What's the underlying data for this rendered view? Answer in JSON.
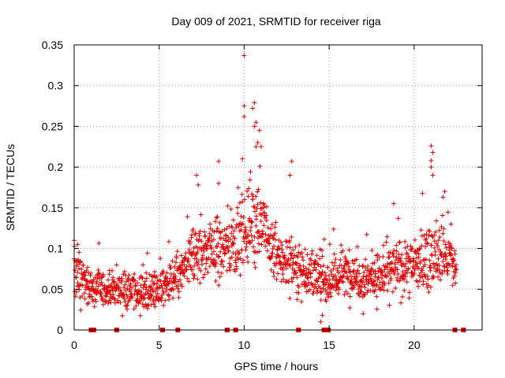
{
  "chart_data": {
    "type": "scatter",
    "title": "Day 009 of 2021, SRMTID for receiver riga",
    "xlabel": "GPS time / hours",
    "ylabel": "SRMTID / TECUs",
    "xlim": [
      0,
      24
    ],
    "ylim": [
      0,
      0.35
    ],
    "xticks": [
      0,
      5,
      10,
      15,
      20
    ],
    "xtick_labels": [
      "0",
      "5",
      "10",
      "15",
      "20"
    ],
    "yticks": [
      0,
      0.05,
      0.1,
      0.15,
      0.2,
      0.25,
      0.3,
      0.35
    ],
    "ytick_labels": [
      "0",
      "0.05",
      "0.1",
      "0.15",
      "0.2",
      "0.25",
      "0.3",
      "0.35"
    ],
    "grid": true,
    "marker": "+",
    "color": "#ff0000",
    "marker_color": "#dd0000",
    "series": [
      {
        "name": "SRMTID",
        "description": "dense scatter sampled at approximately 1-minute resolution",
        "envelope": [
          {
            "x": 0.0,
            "median": 0.07,
            "spread": 0.03
          },
          {
            "x": 0.5,
            "median": 0.06,
            "spread": 0.025
          },
          {
            "x": 1.0,
            "median": 0.05,
            "spread": 0.02
          },
          {
            "x": 2.0,
            "median": 0.05,
            "spread": 0.02
          },
          {
            "x": 3.0,
            "median": 0.05,
            "spread": 0.02
          },
          {
            "x": 4.0,
            "median": 0.045,
            "spread": 0.02
          },
          {
            "x": 5.0,
            "median": 0.05,
            "spread": 0.02
          },
          {
            "x": 6.0,
            "median": 0.06,
            "spread": 0.02
          },
          {
            "x": 7.0,
            "median": 0.09,
            "spread": 0.035
          },
          {
            "x": 8.0,
            "median": 0.1,
            "spread": 0.035
          },
          {
            "x": 9.0,
            "median": 0.1,
            "spread": 0.035
          },
          {
            "x": 10.0,
            "median": 0.12,
            "spread": 0.04
          },
          {
            "x": 10.5,
            "median": 0.14,
            "spread": 0.05
          },
          {
            "x": 11.0,
            "median": 0.13,
            "spread": 0.04
          },
          {
            "x": 12.0,
            "median": 0.085,
            "spread": 0.03
          },
          {
            "x": 13.0,
            "median": 0.08,
            "spread": 0.03
          },
          {
            "x": 14.0,
            "median": 0.065,
            "spread": 0.025
          },
          {
            "x": 15.0,
            "median": 0.06,
            "spread": 0.025
          },
          {
            "x": 16.0,
            "median": 0.07,
            "spread": 0.025
          },
          {
            "x": 17.0,
            "median": 0.065,
            "spread": 0.025
          },
          {
            "x": 18.0,
            "median": 0.065,
            "spread": 0.025
          },
          {
            "x": 19.0,
            "median": 0.075,
            "spread": 0.03
          },
          {
            "x": 20.0,
            "median": 0.08,
            "spread": 0.03
          },
          {
            "x": 21.0,
            "median": 0.09,
            "spread": 0.035
          },
          {
            "x": 22.0,
            "median": 0.09,
            "spread": 0.035
          },
          {
            "x": 22.5,
            "median": 0.07,
            "spread": 0.02
          }
        ],
        "notable_points": [
          {
            "x": 10.0,
            "y": 0.337
          },
          {
            "x": 10.0,
            "y": 0.275
          },
          {
            "x": 10.6,
            "y": 0.279
          },
          {
            "x": 10.5,
            "y": 0.272
          },
          {
            "x": 10.0,
            "y": 0.262
          },
          {
            "x": 10.7,
            "y": 0.255
          },
          {
            "x": 10.6,
            "y": 0.25
          },
          {
            "x": 10.9,
            "y": 0.245
          },
          {
            "x": 10.8,
            "y": 0.23
          },
          {
            "x": 10.7,
            "y": 0.225
          },
          {
            "x": 11.0,
            "y": 0.225
          },
          {
            "x": 9.9,
            "y": 0.21
          },
          {
            "x": 12.8,
            "y": 0.207
          },
          {
            "x": 8.5,
            "y": 0.207
          },
          {
            "x": 21.0,
            "y": 0.226
          },
          {
            "x": 21.1,
            "y": 0.218
          },
          {
            "x": 21.0,
            "y": 0.208
          },
          {
            "x": 21.0,
            "y": 0.2
          },
          {
            "x": 21.1,
            "y": 0.19
          },
          {
            "x": 7.2,
            "y": 0.19
          },
          {
            "x": 12.7,
            "y": 0.19
          },
          {
            "x": 7.3,
            "y": 0.178
          },
          {
            "x": 8.5,
            "y": 0.18
          },
          {
            "x": 21.8,
            "y": 0.17
          },
          {
            "x": 21.7,
            "y": 0.163
          },
          {
            "x": 18.8,
            "y": 0.155
          },
          {
            "x": 0.0,
            "y": 0.11
          },
          {
            "x": 0.2,
            "y": 0.105
          },
          {
            "x": 14.5,
            "y": 0.01
          },
          {
            "x": 14.6,
            "y": 0.018
          },
          {
            "x": 17.0,
            "y": 0.02
          }
        ]
      }
    ],
    "zero_markers": [
      1.0,
      1.15,
      2.5,
      5.2,
      6.1,
      9.0,
      9.5,
      13.2,
      14.7,
      14.85,
      14.95,
      22.4,
      22.9
    ]
  }
}
